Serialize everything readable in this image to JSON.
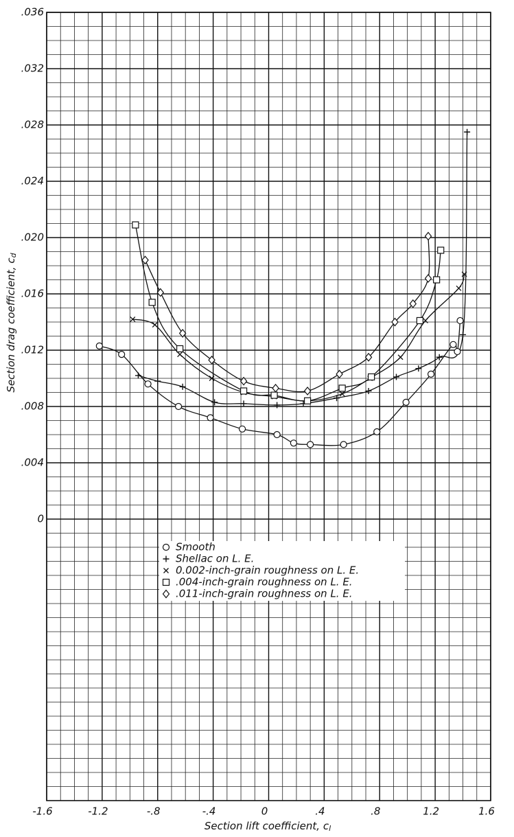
{
  "chart_data": {
    "type": "line",
    "xlabel": "Section lift coefficient, c",
    "xlabel_sub": "l",
    "ylabel": "Section drag coefficient, c",
    "ylabel_sub": "d",
    "xlim": [
      -1.6,
      1.6
    ],
    "ylim": [
      -0.02,
      0.036
    ],
    "xticks": [
      -1.6,
      -1.2,
      {
        "value": -0.8,
        "label": "-.8"
      },
      {
        "value": -0.4,
        "label": "-.4"
      },
      0,
      {
        "value": 0.4,
        "label": ".4"
      },
      {
        "value": 0.8,
        "label": ".8"
      },
      1.2,
      1.6
    ],
    "yticks": [
      0,
      {
        "value": 0.004,
        "label": ".004"
      },
      {
        "value": 0.008,
        "label": ".008"
      },
      {
        "value": 0.012,
        "label": ".012"
      },
      {
        "value": 0.016,
        "label": ".016"
      },
      {
        "value": 0.02,
        "label": ".020"
      },
      {
        "value": 0.024,
        "label": ".024"
      },
      {
        "value": 0.028,
        "label": ".028"
      },
      {
        "value": 0.032,
        "label": ".032"
      },
      {
        "value": 0.036,
        "label": ".036"
      }
    ],
    "xgrid": [
      -1.6,
      -1.5,
      -1.4,
      -1.3,
      -1.2,
      -1.1,
      -1.0,
      -0.9,
      -0.8,
      -0.7,
      -0.6,
      -0.5,
      -0.4,
      -0.3,
      -0.2,
      -0.1,
      0,
      0.1,
      0.2,
      0.3,
      0.4,
      0.5,
      0.6,
      0.7,
      0.8,
      0.9,
      1.0,
      1.1,
      1.2,
      1.3,
      1.4,
      1.5,
      1.6
    ],
    "ygrid": [
      -0.02,
      -0.019,
      -0.018,
      -0.017,
      -0.016,
      -0.015,
      -0.014,
      -0.013,
      -0.012,
      -0.011,
      -0.01,
      -0.009,
      -0.008,
      -0.007,
      -0.006,
      -0.005,
      -0.004,
      -0.003,
      -0.002,
      -0.001,
      0,
      0.001,
      0.002,
      0.003,
      0.004,
      0.005,
      0.006,
      0.007,
      0.008,
      0.009,
      0.01,
      0.011,
      0.012,
      0.013,
      0.014,
      0.015,
      0.016,
      0.017,
      0.018,
      0.019,
      0.02,
      0.021,
      0.022,
      0.023,
      0.024,
      0.025,
      0.026,
      0.027,
      0.028,
      0.029,
      0.03,
      0.031,
      0.032,
      0.033,
      0.034,
      0.035,
      0.036
    ],
    "grid": true,
    "series": [
      {
        "name": "Smooth",
        "marker": "circle",
        "color": "#111",
        "x": [
          -1.22,
          -1.06,
          -0.87,
          -0.65,
          -0.42,
          -0.19,
          0.06,
          0.18,
          0.3,
          0.54,
          0.78,
          0.99,
          1.17,
          1.33,
          1.36,
          1.38
        ],
        "values": [
          0.0123,
          0.0117,
          0.0096,
          0.008,
          0.0072,
          0.0064,
          0.006,
          0.0054,
          0.0053,
          0.0053,
          0.0062,
          0.0083,
          0.0103,
          0.0124,
          0.0119,
          0.0141
        ]
      },
      {
        "name": "Shellac on L. E.",
        "marker": "plus",
        "color": "#111",
        "x": [
          -0.94,
          -0.8,
          -0.62,
          -0.39,
          -0.18,
          0.06,
          0.25,
          0.49,
          0.72,
          0.92,
          1.08,
          1.23,
          1.4,
          1.43
        ],
        "values": [
          0.0102,
          0.0098,
          0.0094,
          0.0083,
          0.0082,
          0.0081,
          0.0082,
          0.0086,
          0.0091,
          0.0101,
          0.0107,
          0.0115,
          0.0131,
          0.0275
        ]
      },
      {
        "name": "0.002-inch-grain roughness on L. E.",
        "marker": "cross",
        "color": "#111",
        "x": [
          -0.98,
          -0.82,
          -0.64,
          -0.41,
          -0.18,
          0.04,
          0.28,
          0.53,
          0.73,
          0.95,
          1.13,
          1.37,
          1.41
        ],
        "values": [
          0.0142,
          0.0138,
          0.0117,
          0.01,
          0.009,
          0.0087,
          0.0084,
          0.0089,
          0.01,
          0.0115,
          0.0141,
          0.0164,
          0.0174
        ]
      },
      {
        "name": ".004-inch-grain roughness on L. E.",
        "marker": "square",
        "color": "#111",
        "x": [
          -0.96,
          -0.84,
          -0.64,
          -0.18,
          0.04,
          0.28,
          0.53,
          0.74,
          1.09,
          1.21,
          1.24
        ],
        "values": [
          0.0209,
          0.0154,
          0.0121,
          0.0091,
          0.0088,
          0.0084,
          0.0093,
          0.0101,
          0.0141,
          0.017,
          0.0191
        ]
      },
      {
        "name": ".011-inch-grain roughness on L. E.",
        "marker": "diamond",
        "color": "#111",
        "x": [
          -0.89,
          -0.78,
          -0.62,
          -0.41,
          -0.18,
          0.05,
          0.28,
          0.51,
          0.72,
          0.91,
          1.04,
          1.15,
          1.15
        ],
        "values": [
          0.0184,
          0.0161,
          0.0132,
          0.0113,
          0.0098,
          0.0093,
          0.0091,
          0.0103,
          0.0115,
          0.014,
          0.0153,
          0.0171,
          0.0201
        ]
      }
    ]
  }
}
